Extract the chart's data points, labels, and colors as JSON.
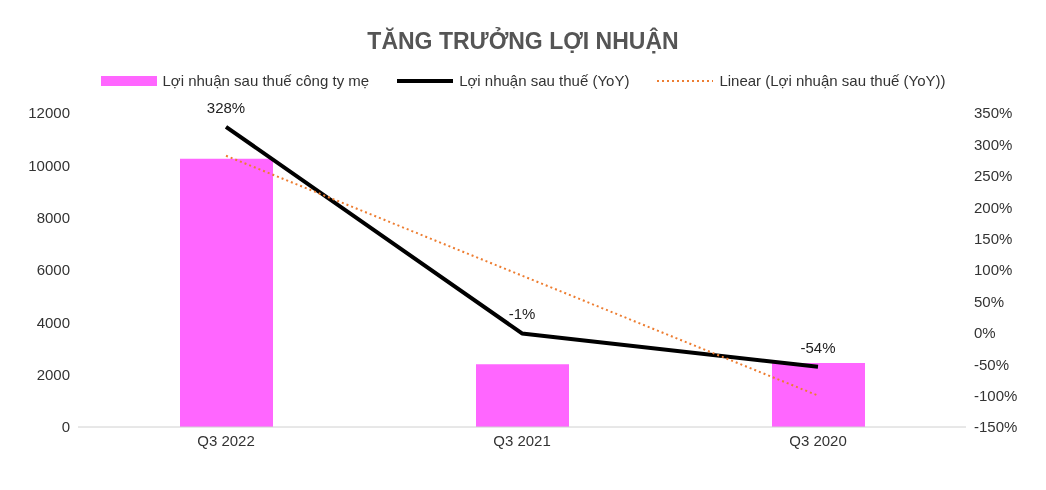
{
  "chart_data": {
    "type": "bar",
    "title": "TĂNG TRƯỞNG LỢI NHUẬN",
    "categories": [
      "Q3 2022",
      "Q3 2021",
      "Q3 2020"
    ],
    "series": [
      {
        "name": "Lợi nhuận sau thuế công ty mẹ",
        "color": "#ff66ff",
        "values": [
          10250,
          2400,
          2450
        ]
      },
      {
        "name": "Lợi nhuận sau thuế (YoY)",
        "type": "line",
        "axis": "y2",
        "color": "#000000",
        "values": [
          328,
          -1,
          -54
        ],
        "value_labels": [
          "328%",
          "-1%",
          "-54%"
        ]
      },
      {
        "name": "Linear (Lợi nhuận sau thuế (YoY))",
        "type": "line",
        "axis": "y2",
        "color": "#ed7d31",
        "line_style": "dotted",
        "values": [
          282,
          91,
          -100
        ]
      }
    ],
    "ylim": [
      0,
      12000
    ],
    "yticks": [
      0,
      2000,
      4000,
      6000,
      8000,
      10000,
      12000
    ],
    "y2lim": [
      -150,
      350
    ],
    "y2ticks": [
      {
        "value": -150,
        "label": "-150%"
      },
      {
        "value": -100,
        "label": "-100%"
      },
      {
        "value": -50,
        "label": "-50%"
      },
      {
        "value": 0,
        "label": "0%"
      },
      {
        "value": 50,
        "label": "50%"
      },
      {
        "value": 100,
        "label": "100%"
      },
      {
        "value": 150,
        "label": "150%"
      },
      {
        "value": 200,
        "label": "200%"
      },
      {
        "value": 250,
        "label": "250%"
      },
      {
        "value": 300,
        "label": "300%"
      },
      {
        "value": 350,
        "label": "350%"
      }
    ],
    "legend": "top",
    "grid": false,
    "marker": "none"
  }
}
